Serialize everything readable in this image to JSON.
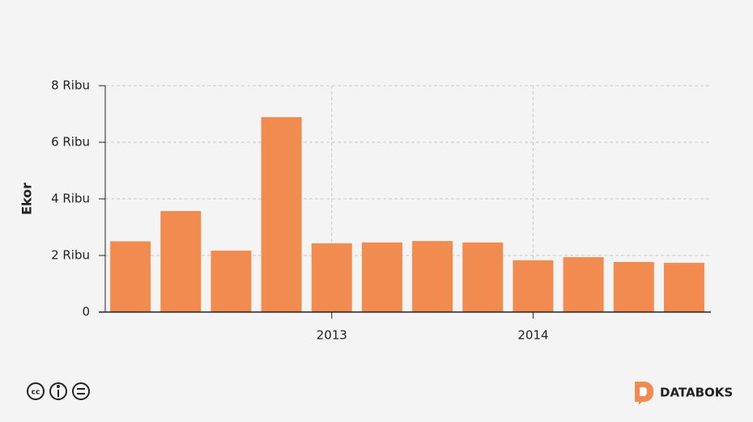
{
  "chart_data": {
    "type": "bar",
    "categories": [
      null,
      null,
      null,
      null,
      "2013",
      null,
      null,
      null,
      "2014",
      null,
      null,
      null
    ],
    "values": [
      2500,
      3570,
      2170,
      6890,
      2430,
      2460,
      2510,
      2460,
      1830,
      1940,
      1770,
      1740
    ],
    "color": "#f28b4f",
    "y_label": "Ekor",
    "ylim": [
      0,
      8000
    ],
    "yticks": [
      0,
      {
        "value": 2000,
        "label": "2 Ribu"
      },
      {
        "value": 4000,
        "label": "4 Ribu"
      },
      {
        "value": 6000,
        "label": "6 Ribu"
      },
      {
        "value": 8000,
        "label": "8 Ribu"
      }
    ],
    "grid": true
  },
  "footer": {
    "brand": "DATABOKS"
  }
}
